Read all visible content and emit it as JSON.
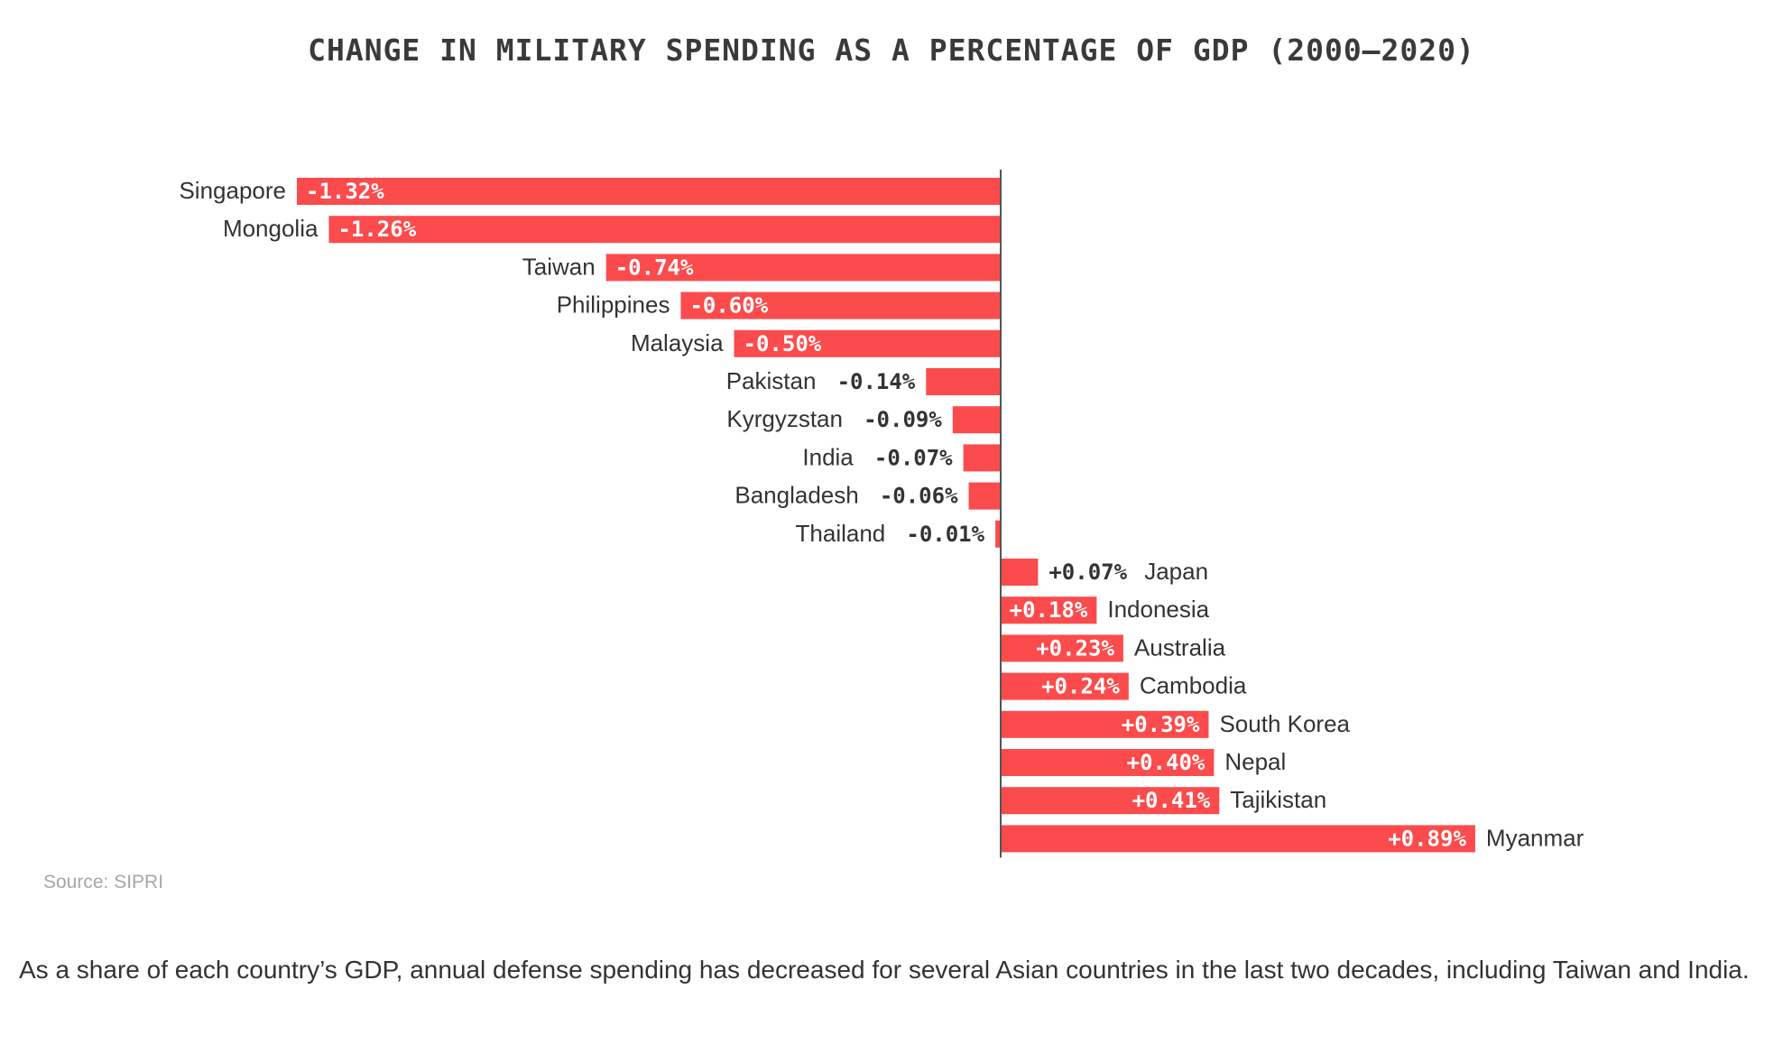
{
  "title": "CHANGE IN MILITARY SPENDING AS A PERCENTAGE OF GDP (2000–2020)",
  "source": "Source: SIPRI",
  "caption": "As a share of each country’s GDP, annual defense spending has decreased for several Asian countries in the last two decades, including Taiwan and India.",
  "colors": {
    "bar": "#fc4b4c",
    "axis": "#555555",
    "label_dark": "#333333",
    "label_light": "#ffffff"
  },
  "chart_data": {
    "type": "bar",
    "orientation": "horizontal",
    "categories": [
      "Singapore",
      "Mongolia",
      "Taiwan",
      "Philippines",
      "Malaysia",
      "Pakistan",
      "Kyrgyzstan",
      "India",
      "Bangladesh",
      "Thailand",
      "Japan",
      "Indonesia",
      "Australia",
      "Cambodia",
      "South Korea",
      "Nepal",
      "Tajikistan",
      "Myanmar"
    ],
    "values": [
      -1.32,
      -1.26,
      -0.74,
      -0.6,
      -0.5,
      -0.14,
      -0.09,
      -0.07,
      -0.06,
      -0.01,
      0.07,
      0.18,
      0.23,
      0.24,
      0.39,
      0.4,
      0.41,
      0.89
    ],
    "value_labels": [
      "-1.32%",
      "-1.26%",
      "-0.74%",
      "-0.60%",
      "-0.50%",
      "-0.14%",
      "-0.09%",
      "-0.07%",
      "-0.06%",
      "-0.01%",
      "+0.07%",
      "+0.18%",
      "+0.23%",
      "+0.24%",
      "+0.39%",
      "+0.40%",
      "+0.41%",
      "+0.89%"
    ],
    "xlim": [
      -1.32,
      0.89
    ],
    "grid": false,
    "legend": "none"
  }
}
